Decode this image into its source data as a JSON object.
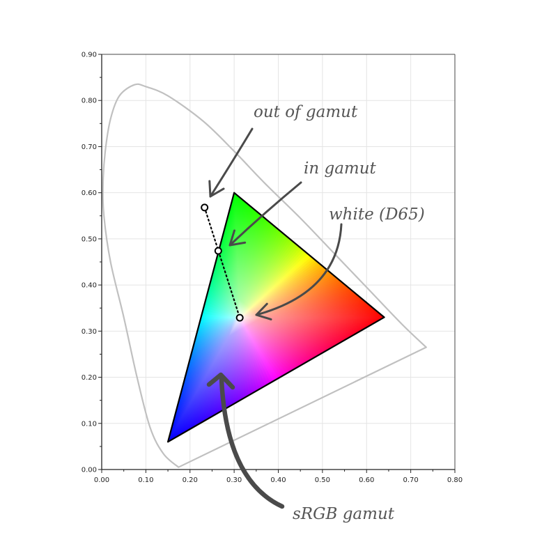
{
  "chart_data": {
    "type": "scatter",
    "title": "",
    "xlabel": "",
    "ylabel": "",
    "xlim": [
      0,
      0.8
    ],
    "ylim": [
      0,
      0.9
    ],
    "grid": true,
    "x_ticks": [
      "0.00",
      "0.10",
      "0.20",
      "0.30",
      "0.40",
      "0.50",
      "0.60",
      "0.70",
      "0.80"
    ],
    "y_ticks": [
      "0.00",
      "0.10",
      "0.20",
      "0.30",
      "0.40",
      "0.50",
      "0.60",
      "0.70",
      "0.80",
      "0.90"
    ],
    "spectral_locus": [
      [
        0.174,
        0.005
      ],
      [
        0.14,
        0.034
      ],
      [
        0.11,
        0.09
      ],
      [
        0.08,
        0.2
      ],
      [
        0.05,
        0.33
      ],
      [
        0.02,
        0.45
      ],
      [
        0.005,
        0.55
      ],
      [
        0.003,
        0.62
      ],
      [
        0.008,
        0.69
      ],
      [
        0.02,
        0.76
      ],
      [
        0.04,
        0.81
      ],
      [
        0.074,
        0.834
      ],
      [
        0.1,
        0.83
      ],
      [
        0.15,
        0.81
      ],
      [
        0.23,
        0.755
      ],
      [
        0.3,
        0.69
      ],
      [
        0.37,
        0.62
      ],
      [
        0.45,
        0.545
      ],
      [
        0.53,
        0.465
      ],
      [
        0.6,
        0.395
      ],
      [
        0.68,
        0.315
      ],
      [
        0.735,
        0.265
      ]
    ],
    "gamut": {
      "red": [
        0.64,
        0.33
      ],
      "green": [
        0.3,
        0.6
      ],
      "blue": [
        0.15,
        0.06
      ],
      "white": [
        0.3127,
        0.329
      ]
    },
    "points": [
      {
        "label": "out of gamut",
        "x": 0.233,
        "y": 0.568
      },
      {
        "label": "in gamut",
        "x": 0.264,
        "y": 0.474
      },
      {
        "label": "white (D65)",
        "x": 0.3127,
        "y": 0.329
      }
    ],
    "annotations": [
      "out of gamut",
      "in gamut",
      "white (D65)",
      "sRGB gamut"
    ],
    "colors": {
      "locus": "#c0c0c0",
      "arrow": "#4a4a4a",
      "red": "#ff0000",
      "green": "#00ff00",
      "blue": "#0000ff"
    }
  }
}
